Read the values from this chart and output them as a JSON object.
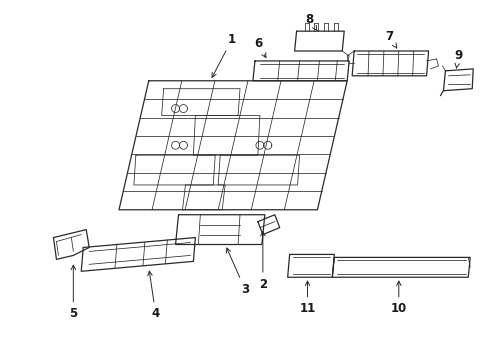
{
  "background_color": "#ffffff",
  "line_color": "#2a2a2a",
  "text_color": "#1a1a1a",
  "figsize": [
    4.89,
    3.6
  ],
  "dpi": 100,
  "lw": 0.9,
  "lw_thin": 0.55,
  "fs": 8.5
}
